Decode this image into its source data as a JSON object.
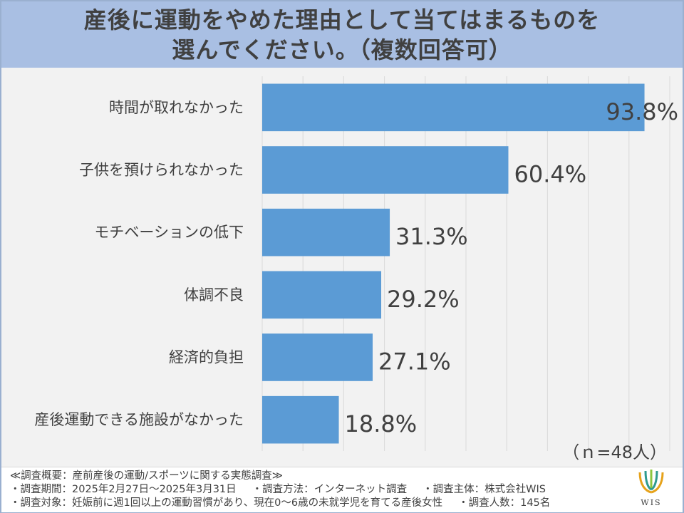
{
  "header": {
    "title_line1": "産後に運動をやめた理由として当てはまるものを",
    "title_line2": "選んでください。（複数回答可）"
  },
  "chart_data": {
    "type": "bar",
    "orientation": "horizontal",
    "categories": [
      "時間が取れなかった",
      "子供を預けられなかった",
      "モチベーションの低下",
      "体調不良",
      "経済的負担",
      "産後運動できる施設がなかった"
    ],
    "values": [
      93.8,
      60.4,
      31.3,
      29.2,
      27.1,
      18.8
    ],
    "value_labels": [
      "93.8%",
      "60.4%",
      "31.3%",
      "29.2%",
      "27.1%",
      "18.8%"
    ],
    "xlim": [
      0,
      100
    ],
    "grid": true,
    "bar_color": "#5b9bd5",
    "annotation": "（ｎ=48人）"
  },
  "footer": {
    "line1": "≪調査概要：産前産後の運動/スポーツに関する実態調査≫",
    "line2_parts": [
      "・調査期間：2025年2月27日～2025年3月31日",
      "・調査方法：インターネット調査",
      "・調査主体：株式会社WIS"
    ],
    "line3_parts": [
      "・調査対象：妊娠前に週1回以上の運動習慣があり、現在0～6歳の未就学児を育てる産後女性",
      "・調査人数：145名"
    ],
    "logo_text": "WIS"
  },
  "colors": {
    "header_bg": "#a9bfe3",
    "plot_bg": "#f2f2f2",
    "text": "#404040"
  }
}
